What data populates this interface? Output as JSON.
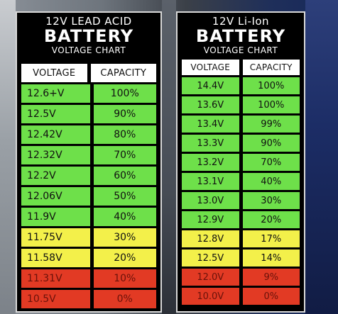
{
  "lead_acid": {
    "title_line1": "12V LEAD ACID",
    "title_line2": "BATTERY",
    "title_line3": "VOLTAGE CHART",
    "headers": [
      "VOLTAGE",
      "CAPACITY"
    ],
    "rows": [
      {
        "voltage": "12.6+V",
        "capacity": "100%",
        "color": "#6ee04a"
      },
      {
        "voltage": "12.5V",
        "capacity": "90%",
        "color": "#6ee04a"
      },
      {
        "voltage": "12.42V",
        "capacity": "80%",
        "color": "#6ee04a"
      },
      {
        "voltage": "12.32V",
        "capacity": "70%",
        "color": "#6ee04a"
      },
      {
        "voltage": "12.2V",
        "capacity": "60%",
        "color": "#6ee04a"
      },
      {
        "voltage": "12.06V",
        "capacity": "50%",
        "color": "#6ee04a"
      },
      {
        "voltage": "11.9V",
        "capacity": "40%",
        "color": "#6ee04a"
      },
      {
        "voltage": "11.75V",
        "capacity": "30%",
        "color": "#f3f04a"
      },
      {
        "voltage": "11.58V",
        "capacity": "20%",
        "color": "#f3f04a"
      },
      {
        "voltage": "11.31V",
        "capacity": "10%",
        "color": "#e23a24"
      },
      {
        "voltage": "10.5V",
        "capacity": "0%",
        "color": "#e23a24"
      }
    ]
  },
  "li_ion": {
    "title_line1": "12V Li-Ion",
    "title_line2": "BATTERY",
    "title_line3": "VOLTAGE CHART",
    "headers": [
      "VOLTAGE",
      "CAPACITY"
    ],
    "rows": [
      {
        "voltage": "14.4V",
        "capacity": "100%",
        "color": "#6ee04a"
      },
      {
        "voltage": "13.6V",
        "capacity": "100%",
        "color": "#6ee04a"
      },
      {
        "voltage": "13.4V",
        "capacity": "99%",
        "color": "#6ee04a"
      },
      {
        "voltage": "13.3V",
        "capacity": "90%",
        "color": "#6ee04a"
      },
      {
        "voltage": "13.2V",
        "capacity": "70%",
        "color": "#6ee04a"
      },
      {
        "voltage": "13.1V",
        "capacity": "40%",
        "color": "#6ee04a"
      },
      {
        "voltage": "13.0V",
        "capacity": "30%",
        "color": "#6ee04a"
      },
      {
        "voltage": "12.9V",
        "capacity": "20%",
        "color": "#6ee04a"
      },
      {
        "voltage": "12.8V",
        "capacity": "17%",
        "color": "#f3f04a"
      },
      {
        "voltage": "12.5V",
        "capacity": "14%",
        "color": "#f3f04a"
      },
      {
        "voltage": "12.0V",
        "capacity": "9%",
        "color": "#e23a24"
      },
      {
        "voltage": "10.0V",
        "capacity": "0%",
        "color": "#e23a24"
      }
    ]
  }
}
